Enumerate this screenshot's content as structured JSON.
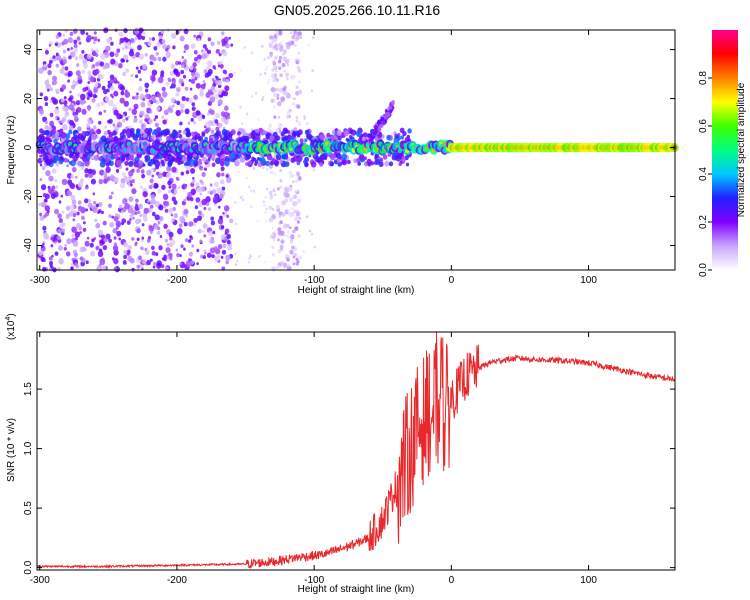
{
  "title": "GN05.2025.266.10.11.R16",
  "chart_data": [
    {
      "type": "heatmap",
      "name": "spectrogram",
      "xlabel": "Height of straight line (km)",
      "ylabel": "Frequency (Hz)",
      "xlim": [
        -302,
        163
      ],
      "ylim": [
        -50,
        48
      ],
      "xticks": [
        -300,
        -200,
        -100,
        0,
        100
      ],
      "yticks": [
        -40,
        -20,
        0,
        20,
        40
      ],
      "description_regions": [
        {
          "x_range": [
            -300,
            -160
          ],
          "freq_spread": [
            -50,
            48
          ],
          "intensity": "low-mid, scattered"
        },
        {
          "x_range": [
            -130,
            -110
          ],
          "freq_spread": [
            -50,
            48
          ],
          "intensity": "low, scattered"
        },
        {
          "x_range": [
            -300,
            163
          ],
          "freq_band": [
            -3,
            3
          ],
          "intensity": "high"
        },
        {
          "x_range": [
            -55,
            -45
          ],
          "freq_spread": [
            5,
            18
          ],
          "intensity": "low-mid"
        }
      ],
      "colorbar": {
        "label": "Normalized spectral amplitude",
        "range": [
          0,
          1
        ],
        "ticks": [
          "0.0",
          "0.2",
          "0.4",
          "0.6",
          "0.8"
        ],
        "colors": [
          "#ffffff",
          "#c9a6ff",
          "#8000ff",
          "#2020ff",
          "#00c8ff",
          "#00ff80",
          "#40ff00",
          "#ffff00",
          "#ff8000",
          "#ff0000",
          "#ff0090"
        ]
      }
    },
    {
      "type": "line",
      "name": "snr",
      "xlabel": "Height of straight line (km)",
      "ylabel": "SNR (10 * v/v)",
      "exponent_label": "(x10",
      "exponent_power": "4",
      "exponent_close": ")",
      "xlim": [
        -302,
        163
      ],
      "ylim": [
        -0.02,
        1.98
      ],
      "xticks": [
        -300,
        -200,
        -100,
        0,
        100
      ],
      "yticks": [
        "0.0",
        "0.5",
        "1.0",
        "1.5"
      ],
      "line_color": "#e8282b",
      "series": [
        {
          "name": "SNR",
          "x": [
            -302,
            -250,
            -200,
            -150,
            -130,
            -120,
            -110,
            -100,
            -90,
            -80,
            -70,
            -60,
            -50,
            -45,
            -40,
            -35,
            -30,
            -25,
            -20,
            -15,
            -10,
            -5,
            0,
            5,
            10,
            20,
            30,
            40,
            50,
            60,
            80,
            100,
            120,
            140,
            163
          ],
          "values": [
            0.01,
            0.01,
            0.02,
            0.03,
            0.05,
            0.07,
            0.09,
            0.1,
            0.12,
            0.16,
            0.2,
            0.25,
            0.4,
            0.55,
            0.7,
            0.85,
            1.0,
            1.15,
            1.25,
            1.35,
            1.35,
            1.3,
            1.42,
            1.5,
            1.6,
            1.68,
            1.73,
            1.75,
            1.76,
            1.75,
            1.74,
            1.72,
            1.67,
            1.62,
            1.58
          ]
        }
      ]
    }
  ]
}
